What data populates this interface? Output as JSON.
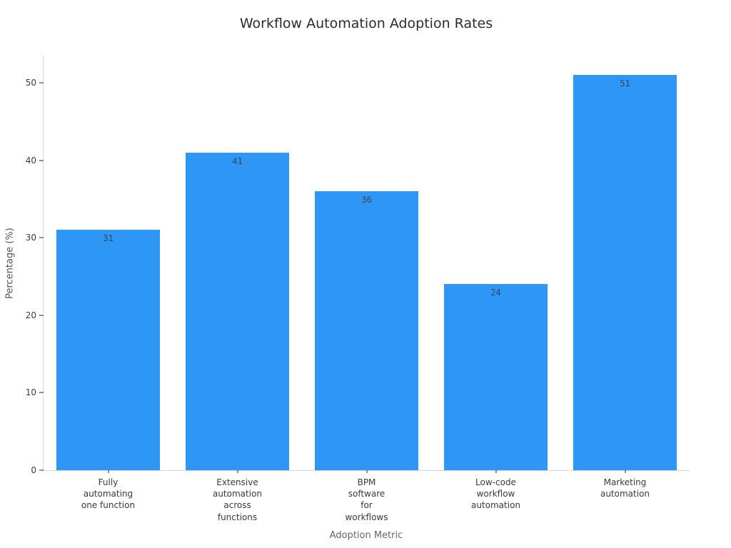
{
  "chart_data": {
    "type": "bar",
    "title": "Workflow Automation Adoption Rates",
    "xlabel": "Adoption Metric",
    "ylabel": "Percentage (%)",
    "categories": [
      "Fully\nautomating\none function",
      "Extensive\nautomation\nacross\nfunctions",
      "BPM\nsoftware\nfor\nworkflows",
      "Low-code\nworkflow\nautomation",
      "Marketing\nautomation"
    ],
    "values": [
      31,
      41,
      36,
      24,
      51
    ],
    "value_labels": [
      "31",
      "41",
      "36",
      "24",
      "51"
    ],
    "yticks": [
      0,
      10,
      20,
      30,
      40,
      50
    ],
    "ylim": [
      0,
      53.5
    ],
    "grid": false,
    "legend": false,
    "colors": {
      "bar_fill": "#2e96f5",
      "value_label": "#37474f",
      "title_text": "#2b2b2b",
      "tick_label": "#3a3a3a",
      "tick_mark": "#262626",
      "axis_spine": "#d6d6d6",
      "axis_title": "#666666",
      "background": "#ffffff"
    }
  }
}
